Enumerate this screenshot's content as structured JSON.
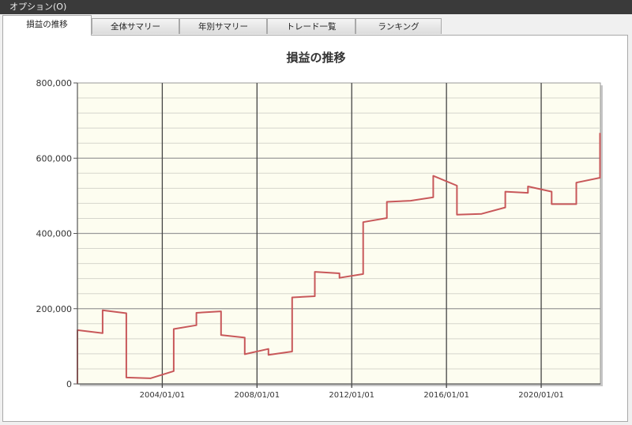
{
  "menubar": {
    "label": "オプション(O)"
  },
  "tabs": [
    {
      "label": "損益の推移",
      "active": true
    },
    {
      "label": "全体サマリー",
      "active": false
    },
    {
      "label": "年別サマリー",
      "active": false
    },
    {
      "label": "トレード一覧",
      "active": false
    },
    {
      "label": "ランキング",
      "active": false
    }
  ],
  "chart_data": {
    "type": "line",
    "title": "損益の推移",
    "xlabel": "",
    "ylabel": "",
    "xlim": [
      "2000/06/01",
      "2022/07/01"
    ],
    "ylim": [
      0,
      800000
    ],
    "x_ticks": [
      "2004/01/01",
      "2008/01/01",
      "2012/01/01",
      "2016/01/01",
      "2020/01/01"
    ],
    "y_ticks": [
      "0",
      "200,000",
      "400,000",
      "600,000",
      "800,000"
    ],
    "y_tick_values": [
      0,
      200000,
      400000,
      600000,
      800000
    ],
    "grid": true,
    "background": "#fdfdf0",
    "line_color": "#c8585a",
    "series": [
      {
        "points": [
          [
            "2000/06/01",
            0
          ],
          [
            "2000/06/01",
            143000
          ],
          [
            "2001/06/25",
            135000
          ],
          [
            "2001/06/25",
            196000
          ],
          [
            "2002/06/25",
            188000
          ],
          [
            "2002/06/25",
            17000
          ],
          [
            "2003/07/01",
            15000
          ],
          [
            "2004/06/25",
            34000
          ],
          [
            "2004/06/25",
            146000
          ],
          [
            "2005/06/10",
            156000
          ],
          [
            "2005/06/10",
            189000
          ],
          [
            "2006/06/25",
            193000
          ],
          [
            "2006/06/25",
            130000
          ],
          [
            "2007/06/25",
            123000
          ],
          [
            "2007/06/25",
            79000
          ],
          [
            "2008/06/25",
            93000
          ],
          [
            "2008/06/25",
            77000
          ],
          [
            "2009/06/25",
            86000
          ],
          [
            "2009/06/25",
            230000
          ],
          [
            "2010/06/10",
            233000
          ],
          [
            "2010/06/10",
            298000
          ],
          [
            "2011/06/25",
            294000
          ],
          [
            "2011/06/25",
            282000
          ],
          [
            "2012/06/25",
            292000
          ],
          [
            "2012/06/25",
            430000
          ],
          [
            "2013/06/25",
            441000
          ],
          [
            "2013/06/25",
            484000
          ],
          [
            "2014/06/25",
            487000
          ],
          [
            "2015/06/10",
            496000
          ],
          [
            "2015/06/10",
            553000
          ],
          [
            "2016/06/10",
            527000
          ],
          [
            "2016/06/10",
            450000
          ],
          [
            "2017/06/25",
            452000
          ],
          [
            "2018/06/25",
            469000
          ],
          [
            "2018/06/25",
            511000
          ],
          [
            "2019/06/10",
            508000
          ],
          [
            "2019/06/10",
            525000
          ],
          [
            "2020/06/10",
            511000
          ],
          [
            "2020/06/10",
            478000
          ],
          [
            "2021/06/25",
            478000
          ],
          [
            "2021/06/25",
            535000
          ],
          [
            "2022/06/25",
            548000
          ],
          [
            "2022/06/25",
            667000
          ]
        ]
      }
    ]
  }
}
